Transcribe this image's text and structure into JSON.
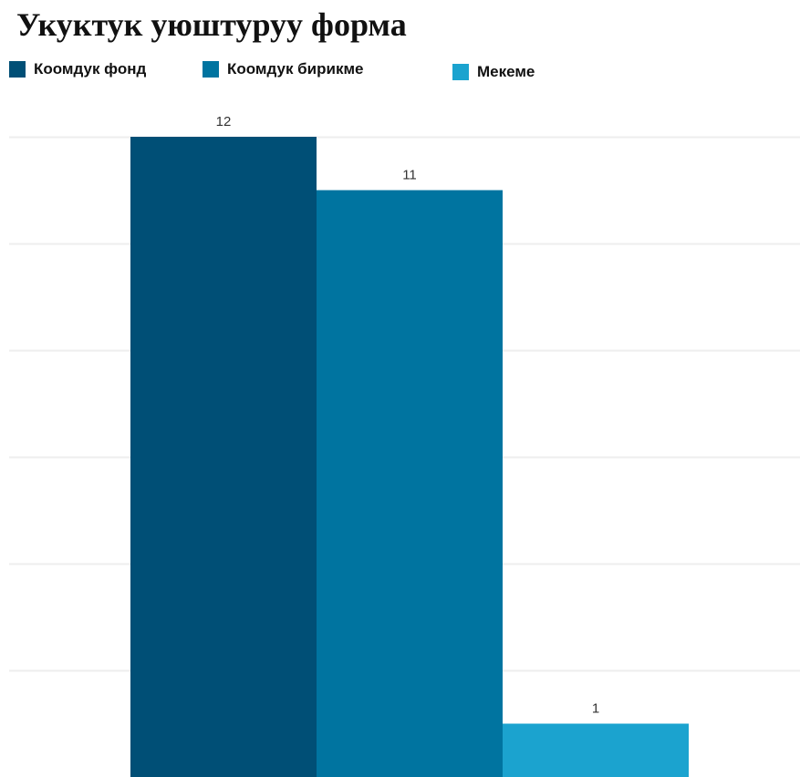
{
  "chart_data": {
    "type": "bar",
    "title": "Укуктук уюштуруу форма",
    "categories": [
      "Коомдук фонд",
      "Коомдук бирикме",
      "Мекеме"
    ],
    "values": [
      12,
      11,
      1
    ],
    "colors": [
      "#004f76",
      "#0074a0",
      "#1ba3cf"
    ],
    "gridline_color": "#eeeeee",
    "xlabel": "",
    "ylabel": "",
    "ylim": [
      0,
      12
    ],
    "grid": true,
    "legend": "top-left",
    "data_labels": true
  }
}
